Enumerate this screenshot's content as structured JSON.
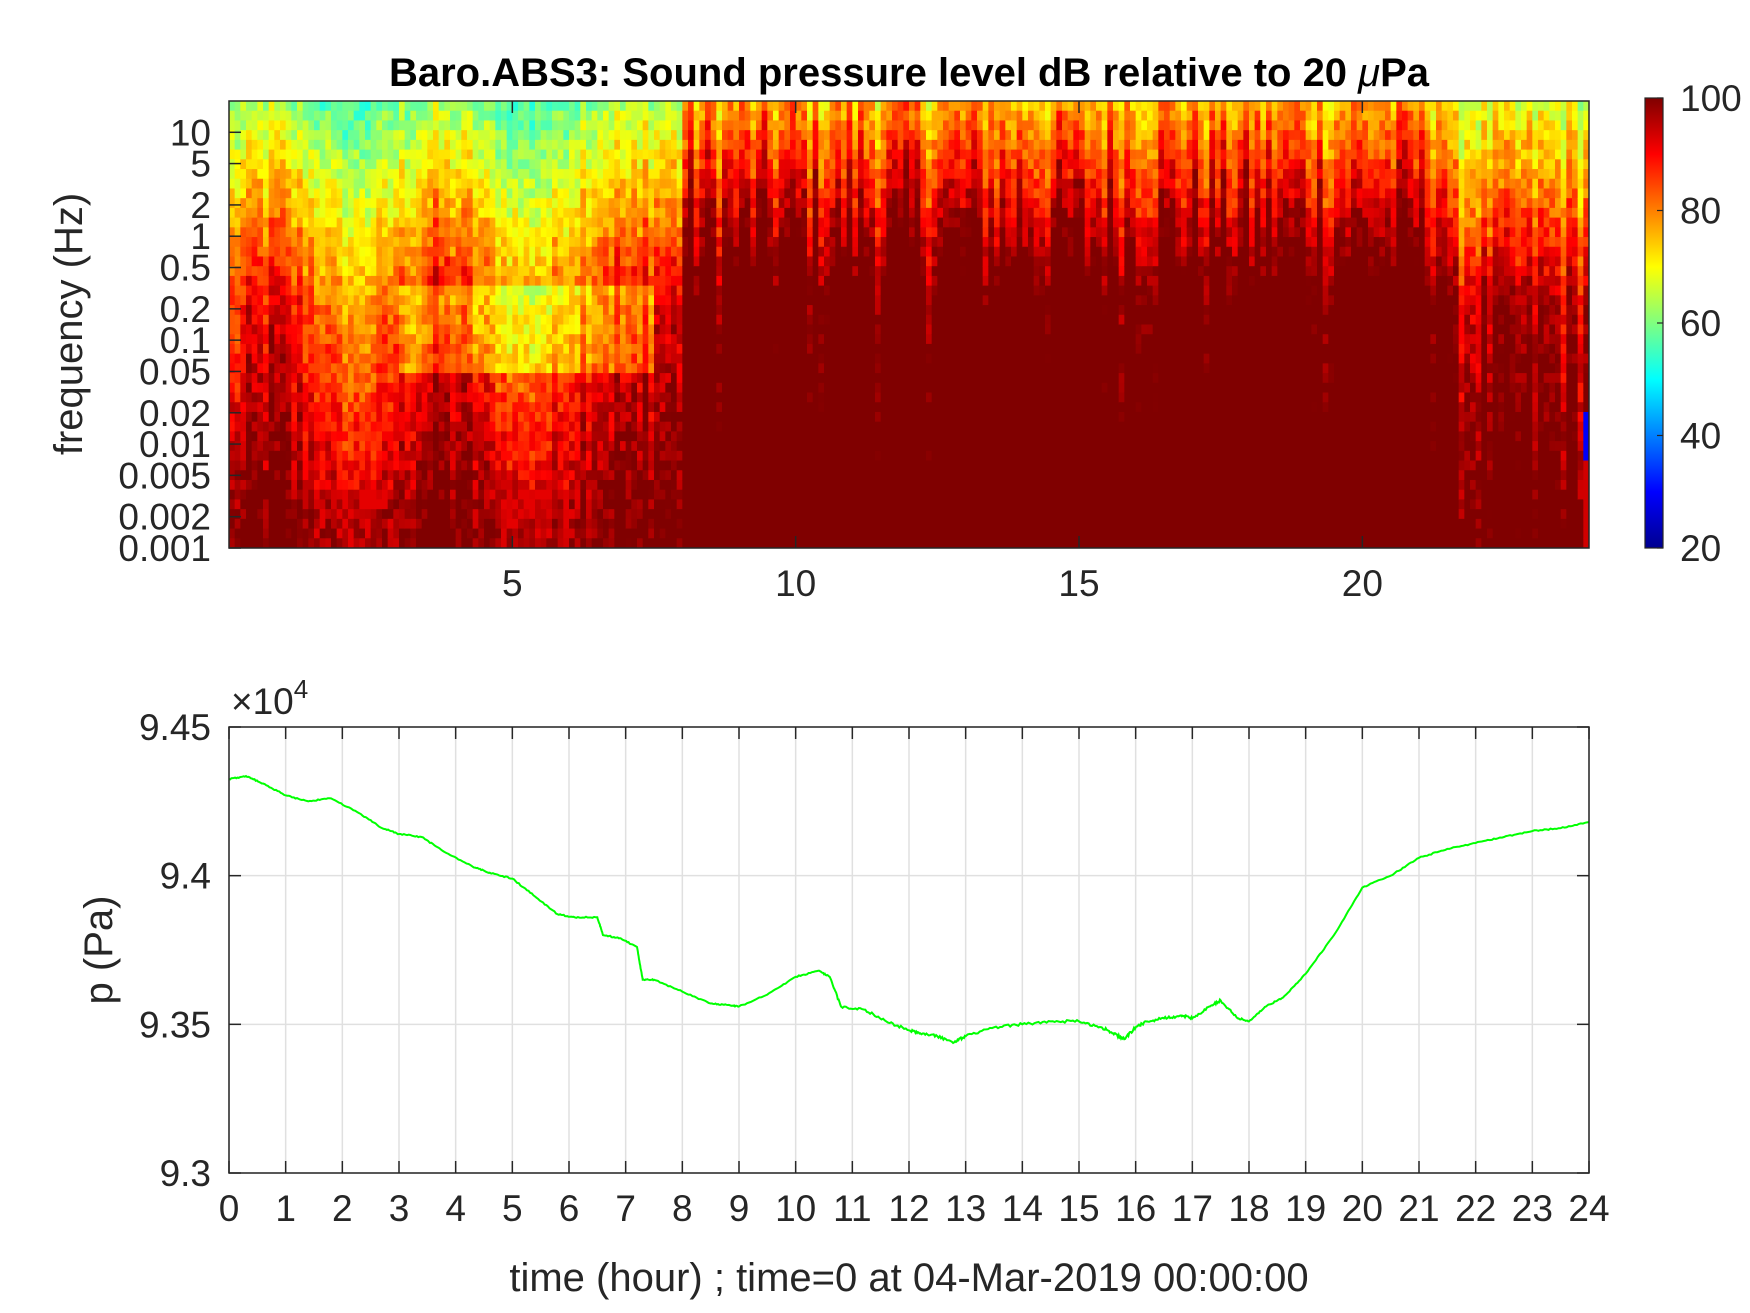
{
  "chart_data": [
    {
      "type": "heatmap",
      "title": "Baro.ABS3: Sound pressure level dB relative to 20 μPa",
      "title_prefix": "Baro.ABS3: Sound pressure level dB relative to 20 ",
      "title_mu": "μ",
      "title_suffix": "Pa",
      "ylabel": "frequency (Hz)",
      "xlabel": "",
      "xlim": [
        0,
        24
      ],
      "ylim_hz": [
        0.001,
        20
      ],
      "y_scale": "log",
      "x_ticks": [
        "5",
        "10",
        "15",
        "20"
      ],
      "x_tick_values": [
        5,
        10,
        15,
        20
      ],
      "y_ticks": [
        "10",
        "5",
        "2",
        "1",
        "0.5",
        "0.2",
        "0.1",
        "0.05",
        "0.02",
        "0.01",
        "0.005",
        "0.002",
        "0.001"
      ],
      "y_tick_values": [
        10,
        5,
        2,
        1,
        0.5,
        0.2,
        0.1,
        0.05,
        0.02,
        0.01,
        0.005,
        0.002,
        0.001
      ],
      "colormap": "jet",
      "colorbar": {
        "clim": [
          20,
          100
        ],
        "ticks": [
          "100",
          "80",
          "60",
          "40",
          "20"
        ],
        "tick_values": [
          100,
          80,
          60,
          40,
          20
        ]
      },
      "colors": {
        "low": "#00008f",
        "mid": "#00ffff",
        "high": "#800000"
      }
    },
    {
      "type": "line",
      "title": "",
      "xlabel": "time (hour) ; time=0 at 04-Mar-2019 00:00:00",
      "ylabel": "p (Pa)",
      "xlim": [
        0,
        24
      ],
      "ylim": [
        93000,
        94500
      ],
      "y_exponent": "10",
      "y_exponent_power": "4",
      "y_exponent_prefix": "×",
      "x_ticks": [
        "0",
        "1",
        "2",
        "3",
        "4",
        "5",
        "6",
        "7",
        "8",
        "9",
        "10",
        "11",
        "12",
        "13",
        "14",
        "15",
        "16",
        "17",
        "18",
        "19",
        "20",
        "21",
        "22",
        "23",
        "24"
      ],
      "y_ticks": [
        "9.45",
        "9.4",
        "9.35",
        "9.3"
      ],
      "y_tick_values": [
        94500,
        94000,
        93500,
        93000
      ],
      "grid": true,
      "series": [
        {
          "color": "#00ff00",
          "x": [
            0,
            0.3,
            0.6,
            1,
            1.4,
            1.8,
            2.3,
            2.7,
            3,
            3.4,
            3.8,
            4.3,
            4.6,
            5,
            5.4,
            5.8,
            6.1,
            6.5,
            6.6,
            6.9,
            7.2,
            7.3,
            7.5,
            8,
            8.5,
            8.8,
            9,
            9.5,
            10,
            10.4,
            10.6,
            10.8,
            11.2,
            11.6,
            12,
            12.2,
            12.5,
            12.8,
            13,
            13.5,
            14,
            14.5,
            15,
            15.4,
            15.6,
            15.8,
            16,
            16.2,
            16.5,
            16.8,
            17,
            17.3,
            17.5,
            17.8,
            18,
            18.3,
            18.6,
            19,
            19.5,
            20,
            20.5,
            21,
            21.5,
            22,
            22.5,
            23,
            23.5,
            24
          ],
          "y": [
            94325,
            94335,
            94310,
            94270,
            94250,
            94260,
            94210,
            94160,
            94140,
            94130,
            94080,
            94030,
            94010,
            93990,
            93930,
            93870,
            93860,
            93860,
            93800,
            93790,
            93760,
            93650,
            93650,
            93610,
            93570,
            93565,
            93560,
            93600,
            93660,
            93680,
            93660,
            93560,
            93550,
            93510,
            93480,
            93470,
            93460,
            93440,
            93460,
            93490,
            93500,
            93510,
            93510,
            93490,
            93470,
            93450,
            93490,
            93510,
            93520,
            93530,
            93520,
            93560,
            93580,
            93520,
            93510,
            93560,
            93590,
            93670,
            93800,
            93960,
            94000,
            94060,
            94090,
            94110,
            94130,
            94150,
            94160,
            94180
          ]
        }
      ]
    }
  ]
}
